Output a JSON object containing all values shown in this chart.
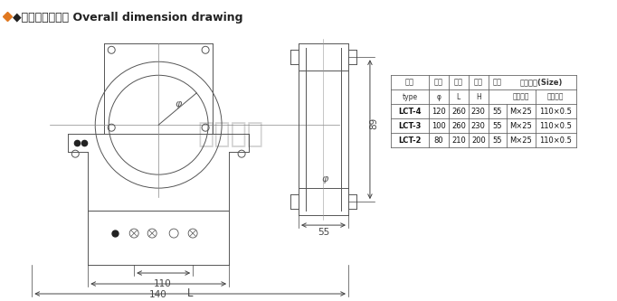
{
  "title_text": "◆外形及安装尺尺 Overall dimension drawing",
  "title_bg": "#ffffff",
  "draw_bg": "#d8d8d8",
  "line_color": "#555555",
  "dim_color": "#444444",
  "diamond_color": "#e07820",
  "watermark": "上海互满",
  "dim_phi": "φ",
  "dim_110": "110",
  "dim_140": "140",
  "dim_L": "L",
  "dim_55": "55",
  "dim_89": "89",
  "table_data": [
    [
      "LCT-4",
      "120",
      "260",
      "230",
      "55",
      "M×25",
      "110×0.5"
    ],
    [
      "LCT-3",
      "100",
      "260",
      "230",
      "55",
      "M×25",
      "110×0.5"
    ],
    [
      "LCT-2",
      "80",
      "210",
      "200",
      "55",
      "M×25",
      "110×0.5"
    ]
  ],
  "col_h1": [
    "型号",
    "内孔",
    "宽度",
    "高度",
    "厚度",
    "地脚尺尺(Size)"
  ],
  "col_h2": [
    "type",
    "φ",
    "L",
    "H",
    "",
    "螺栅规格",
    "中心距离"
  ]
}
